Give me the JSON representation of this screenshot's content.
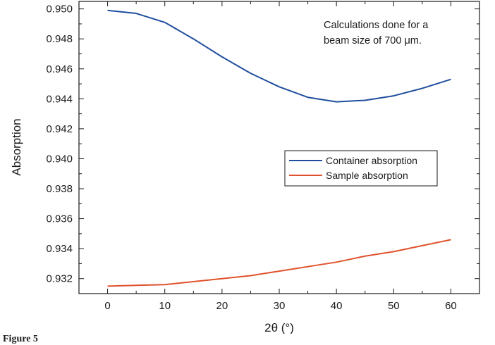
{
  "chart_data": {
    "type": "line",
    "xlabel": "2θ (°)",
    "ylabel": "Absorption",
    "xlim": [
      -5,
      65
    ],
    "ylim": [
      0.931,
      0.9505
    ],
    "xticks": [
      0,
      10,
      20,
      30,
      40,
      50,
      60
    ],
    "yticks": [
      0.932,
      0.934,
      0.936,
      0.938,
      0.94,
      0.942,
      0.944,
      0.946,
      0.948,
      0.95
    ],
    "xtick_labels": [
      "0",
      "10",
      "20",
      "30",
      "40",
      "50",
      "60"
    ],
    "ytick_labels": [
      "0.932",
      "0.934",
      "0.936",
      "0.938",
      "0.940",
      "0.942",
      "0.944",
      "0.946",
      "0.948",
      "0.950"
    ],
    "grid": false,
    "legend_position": "center-right",
    "annotation": [
      "Calculations done for a",
      "beam size of 700 μm."
    ],
    "x": [
      0,
      5,
      10,
      15,
      20,
      25,
      30,
      35,
      40,
      45,
      50,
      55,
      60
    ],
    "series": [
      {
        "name": "Container absorption",
        "color": "#1f4e9e",
        "values": [
          0.9499,
          0.9497,
          0.9491,
          0.948,
          0.9468,
          0.9457,
          0.9448,
          0.9441,
          0.9438,
          0.9439,
          0.9442,
          0.9447,
          0.9453
        ]
      },
      {
        "name": "Sample absorption",
        "color": "#e0522d",
        "values": [
          0.9315,
          0.93155,
          0.9316,
          0.9318,
          0.932,
          0.9322,
          0.9325,
          0.9328,
          0.9331,
          0.9335,
          0.9338,
          0.9342,
          0.9346
        ]
      }
    ]
  },
  "figure_label": "Figure 5"
}
